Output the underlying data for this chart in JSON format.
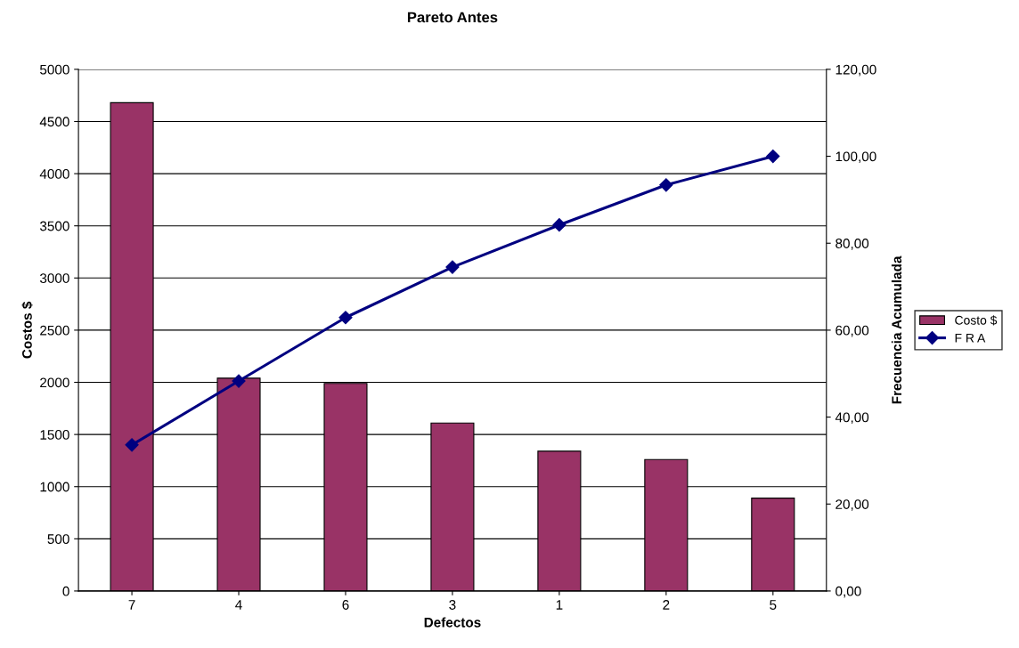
{
  "chart_data": {
    "type": "bar",
    "title": "Pareto Antes",
    "xlabel": "Defectos",
    "ylabel": "Costos $",
    "y2label": "Frecuencia Acumulada",
    "categories": [
      "7",
      "4",
      "6",
      "3",
      "1",
      "2",
      "5"
    ],
    "series": [
      {
        "name": "Costo $",
        "color": "#993366",
        "values": [
          4680,
          2040,
          1990,
          1610,
          1340,
          1260,
          890
        ]
      },
      {
        "name": "F R A",
        "type": "line",
        "axis": "y2",
        "color": "#000080",
        "marker": "diamond",
        "values": [
          33.6,
          48.3,
          62.9,
          74.5,
          84.2,
          93.4,
          100
        ]
      }
    ],
    "ylim": [
      0,
      5000
    ],
    "yticks": [
      0,
      500,
      1000,
      1500,
      2000,
      2500,
      3000,
      3500,
      4000,
      4500,
      5000
    ],
    "y2lim": [
      0,
      120
    ],
    "y2ticks": [
      {
        "value": 0,
        "label": "0,00"
      },
      {
        "value": 20,
        "label": "20,00"
      },
      {
        "value": 40,
        "label": "40,00"
      },
      {
        "value": 60,
        "label": "60,00"
      },
      {
        "value": 80,
        "label": "80,00"
      },
      {
        "value": 100,
        "label": "100,00"
      },
      {
        "value": 120,
        "label": "120,00"
      }
    ],
    "grid": "y",
    "legend": "right"
  }
}
